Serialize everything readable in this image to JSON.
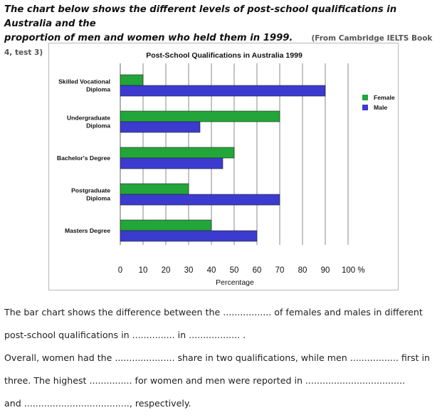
{
  "heading": {
    "line1": "The chart below shows the different levels of post-school qualifications in Australia and the",
    "line2": "proportion of men and women who held them in 1999.",
    "source": "(From Cambridge IELTS Book 4, test 3)"
  },
  "chart_data": {
    "type": "bar",
    "orientation": "horizontal",
    "title": "Post-School Qualifications in Australia 1999",
    "xlabel": "Percentage",
    "ylabel": "",
    "xlim": [
      0,
      100
    ],
    "x_ticks": [
      "0",
      "10",
      "20",
      "30",
      "40",
      "50",
      "60",
      "70",
      "80",
      "90",
      "100 %"
    ],
    "grid": "vertical",
    "legend": "right",
    "categories": [
      [
        "Skilled Vocational",
        "Diploma"
      ],
      [
        "Undergraduate",
        "Diploma"
      ],
      [
        "Bachelor's Degree"
      ],
      [
        "Postgraduate",
        "Diploma"
      ],
      [
        "Masters Degree"
      ]
    ],
    "series": [
      {
        "name": "Female",
        "color": "#22a63a",
        "values": [
          10,
          70,
          50,
          30,
          40
        ]
      },
      {
        "name": "Male",
        "color": "#3b3bd0",
        "values": [
          90,
          35,
          45,
          70,
          60
        ]
      }
    ]
  },
  "exercise": {
    "lines": [
      "The bar chart shows the difference between the ................. of females and males in different",
      "post-school qualifications in ............... in .................. .",
      "Overall, women had the ..................... share in two qualifications, while men ................. first in",
      "three. The highest ............... for women and men were reported in ...................................",
      "and ....................................., respectively."
    ]
  }
}
